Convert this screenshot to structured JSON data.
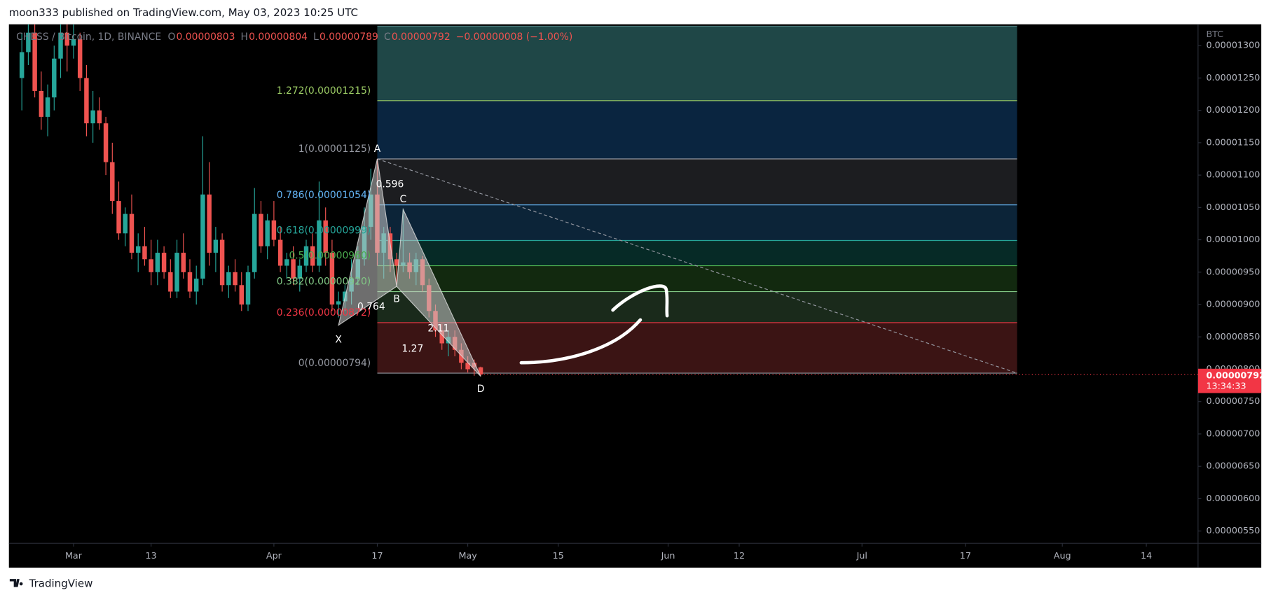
{
  "header": {
    "publisher": "moon333 published on TradingView.com, May 03, 2023 10:25 UTC"
  },
  "footer": {
    "brand": "TradingView"
  },
  "chart_data": {
    "type": "candlestick",
    "symbol": "CHESS / Bitcoin, 1D, BINANCE",
    "ohlc_legend": [
      {
        "key": "O",
        "value": "0.00000803"
      },
      {
        "key": "H",
        "value": "0.00000804"
      },
      {
        "key": "L",
        "value": "0.00000789"
      },
      {
        "key": "C",
        "value": "0.00000792"
      }
    ],
    "change": "−0.00000008 (−1.00%)",
    "currency": "BTC",
    "last_price": {
      "value": 7.92e-06,
      "label": "0.00000792",
      "countdown": "13:34:33",
      "color": "#f23645"
    },
    "up_color": "#26a69a",
    "down_color": "#ef5350",
    "x": [
      "2023-02-21",
      "2023-02-22",
      "2023-02-23",
      "2023-02-24",
      "2023-02-25",
      "2023-02-26",
      "2023-02-27",
      "2023-02-28",
      "2023-03-01",
      "2023-03-02",
      "2023-03-03",
      "2023-03-04",
      "2023-03-05",
      "2023-03-06",
      "2023-03-07",
      "2023-03-08",
      "2023-03-09",
      "2023-03-10",
      "2023-03-11",
      "2023-03-12",
      "2023-03-13",
      "2023-03-14",
      "2023-03-15",
      "2023-03-16",
      "2023-03-17",
      "2023-03-18",
      "2023-03-19",
      "2023-03-20",
      "2023-03-21",
      "2023-03-22",
      "2023-03-23",
      "2023-03-24",
      "2023-03-25",
      "2023-03-26",
      "2023-03-27",
      "2023-03-28",
      "2023-03-29",
      "2023-03-30",
      "2023-03-31",
      "2023-04-01",
      "2023-04-02",
      "2023-04-03",
      "2023-04-04",
      "2023-04-05",
      "2023-04-06",
      "2023-04-07",
      "2023-04-08",
      "2023-04-09",
      "2023-04-10",
      "2023-04-11",
      "2023-04-12",
      "2023-04-13",
      "2023-04-14",
      "2023-04-15",
      "2023-04-16",
      "2023-04-17",
      "2023-04-18",
      "2023-04-19",
      "2023-04-20",
      "2023-04-21",
      "2023-04-22",
      "2023-04-23",
      "2023-04-24",
      "2023-04-25",
      "2023-04-26",
      "2023-04-27",
      "2023-04-28",
      "2023-04-29",
      "2023-04-30",
      "2023-05-01",
      "2023-05-02",
      "2023-05-03"
    ],
    "open": [
      1.25e-05,
      1.29e-05,
      1.32e-05,
      1.23e-05,
      1.19e-05,
      1.22e-05,
      1.28e-05,
      1.32e-05,
      1.3e-05,
      1.31e-05,
      1.25e-05,
      1.18e-05,
      1.2e-05,
      1.18e-05,
      1.12e-05,
      1.06e-05,
      1.01e-05,
      1.04e-05,
      9.8e-06,
      9.9e-06,
      9.7e-06,
      9.5e-06,
      9.8e-06,
      9.5e-06,
      9.2e-06,
      9.8e-06,
      9.5e-06,
      9.2e-06,
      9.4e-06,
      1.07e-05,
      9.8e-06,
      1e-05,
      9.3e-06,
      9.5e-06,
      9.3e-06,
      9e-06,
      9.5e-06,
      1.04e-05,
      9.9e-06,
      1.03e-05,
      1e-05,
      9.6e-06,
      9.7e-06,
      9.4e-06,
      9.6e-06,
      9.9e-06,
      9.6e-06,
      1.03e-05,
      9.8e-06,
      9e-06,
      9.05e-06,
      9.2e-06,
      9.4e-06,
      9.7e-06,
      1.02e-05,
      1.07e-05,
      9.8e-06,
      1.01e-05,
      9.7e-06,
      9.6e-06,
      9.65e-06,
      9.5e-06,
      9.7e-06,
      9.3e-06,
      8.9e-06,
      8.6e-06,
      8.4e-06,
      8.5e-06,
      8.3e-06,
      8.1e-06,
      8.1e-06,
      8.03e-06
    ],
    "high": [
      1.32e-05,
      1.333e-05,
      1.333e-05,
      1.26e-05,
      1.24e-05,
      1.3e-05,
      1.333e-05,
      1.333e-05,
      1.333e-05,
      1.32e-05,
      1.27e-05,
      1.23e-05,
      1.22e-05,
      1.19e-05,
      1.15e-05,
      1.09e-05,
      1.05e-05,
      1.07e-05,
      1.01e-05,
      1.02e-05,
      1e-05,
      1e-05,
      9.9e-06,
      9.7e-06,
      1e-05,
      1.01e-05,
      9.7e-06,
      9.6e-06,
      1.16e-05,
      1.12e-05,
      1.02e-05,
      1.01e-05,
      9.6e-06,
      9.7e-06,
      9.5e-06,
      9.6e-06,
      1.08e-05,
      1.06e-05,
      1.04e-05,
      1.06e-05,
      1.02e-05,
      9.8e-06,
      9.9e-06,
      9.7e-06,
      1e-05,
      1.01e-05,
      1.09e-05,
      1.05e-05,
      1e-05,
      9.2e-06,
      9.3e-06,
      9.7e-06,
      9.9e-06,
      1.05e-05,
      1.11e-05,
      1.125e-05,
      1.02e-05,
      1.02e-05,
      9.8e-06,
      1.047e-05,
      9.8e-06,
      9.8e-06,
      9.75e-06,
      9.4e-06,
      9e-06,
      8.7e-06,
      8.6e-06,
      8.6e-06,
      8.4e-06,
      8.2e-06,
      8.15e-06,
      8.04e-06
    ],
    "low": [
      1.2e-05,
      1.27e-05,
      1.22e-05,
      1.17e-05,
      1.16e-05,
      1.2e-05,
      1.25e-05,
      1.26e-05,
      1.28e-05,
      1.23e-05,
      1.16e-05,
      1.15e-05,
      1.17e-05,
      1.1e-05,
      1.04e-05,
      1e-05,
      9.9e-06,
      9.7e-06,
      9.5e-06,
      9.6e-06,
      9.3e-06,
      9.3e-06,
      9.4e-06,
      9.1e-06,
      9.1e-06,
      9.4e-06,
      9.1e-06,
      9e-06,
      9.3e-06,
      9.6e-06,
      9.5e-06,
      9.2e-06,
      9.1e-06,
      9.2e-06,
      8.9e-06,
      8.9e-06,
      9.4e-06,
      9.8e-06,
      9.7e-06,
      9.9e-06,
      9.5e-06,
      9.4e-06,
      9.3e-06,
      9.2e-06,
      9.5e-06,
      9.5e-06,
      9.5e-06,
      9.6e-06,
      8.9e-06,
      8.8e-06,
      8.9e-06,
      9e-06,
      9.3e-06,
      9.6e-06,
      1e-05,
      9.6e-06,
      9.4e-06,
      9.5e-06,
      9.3e-06,
      9.5e-06,
      9.4e-06,
      9.3e-06,
      9.2e-06,
      8.8e-06,
      8.5e-06,
      8.3e-06,
      8.2e-06,
      8.2e-06,
      8e-06,
      7.95e-06,
      7.9e-06,
      7.89e-06
    ],
    "close": [
      1.29e-05,
      1.32e-05,
      1.23e-05,
      1.19e-05,
      1.22e-05,
      1.28e-05,
      1.32e-05,
      1.3e-05,
      1.31e-05,
      1.25e-05,
      1.18e-05,
      1.2e-05,
      1.18e-05,
      1.12e-05,
      1.06e-05,
      1.01e-05,
      1.04e-05,
      9.8e-06,
      9.9e-06,
      9.7e-06,
      9.5e-06,
      9.8e-06,
      9.5e-06,
      9.2e-06,
      9.8e-06,
      9.5e-06,
      9.2e-06,
      9.4e-06,
      1.07e-05,
      9.8e-06,
      1e-05,
      9.3e-06,
      9.5e-06,
      9.3e-06,
      9e-06,
      9.5e-06,
      1.04e-05,
      9.9e-06,
      1.03e-05,
      1e-05,
      9.6e-06,
      9.7e-06,
      9.4e-06,
      9.6e-06,
      9.9e-06,
      9.6e-06,
      1.03e-05,
      9.8e-06,
      9e-06,
      9.05e-06,
      9.2e-06,
      9.4e-06,
      9.7e-06,
      1.02e-05,
      1.07e-05,
      9.8e-06,
      1.01e-05,
      9.7e-06,
      9.6e-06,
      9.65e-06,
      9.5e-06,
      9.7e-06,
      9.3e-06,
      8.9e-06,
      8.6e-06,
      8.4e-06,
      8.5e-06,
      8.3e-06,
      8.1e-06,
      8e-06,
      8.03e-06,
      7.92e-06
    ],
    "xlim": [
      "2023-02-19",
      "2023-08-22"
    ],
    "xticks": [
      {
        "value": "2023-03-01",
        "label": "Mar"
      },
      {
        "value": "2023-03-13",
        "label": "13"
      },
      {
        "value": "2023-04-01",
        "label": "Apr"
      },
      {
        "value": "2023-04-17",
        "label": "17"
      },
      {
        "value": "2023-05-01",
        "label": "May"
      },
      {
        "value": "2023-05-15",
        "label": "15"
      },
      {
        "value": "2023-06-01",
        "label": "Jun"
      },
      {
        "value": "2023-06-12",
        "label": "12"
      },
      {
        "value": "2023-07-01",
        "label": "Jul"
      },
      {
        "value": "2023-07-17",
        "label": "17"
      },
      {
        "value": "2023-08-01",
        "label": "Aug"
      },
      {
        "value": "2023-08-14",
        "label": "14"
      }
    ],
    "ylim": [
      5.31e-06,
      1.333e-05
    ],
    "yticks": [
      {
        "value": 5.5e-06,
        "label": "0.00000550"
      },
      {
        "value": 6e-06,
        "label": "0.00000600"
      },
      {
        "value": 6.5e-06,
        "label": "0.00000650"
      },
      {
        "value": 7e-06,
        "label": "0.00000700"
      },
      {
        "value": 7.5e-06,
        "label": "0.00000750"
      },
      {
        "value": 8e-06,
        "label": "0.00000800"
      },
      {
        "value": 8.5e-06,
        "label": "0.00000850"
      },
      {
        "value": 9e-06,
        "label": "0.00000900"
      },
      {
        "value": 9.5e-06,
        "label": "0.00000950"
      },
      {
        "value": 1e-05,
        "label": "0.00001000"
      },
      {
        "value": 1.05e-05,
        "label": "0.00001050"
      },
      {
        "value": 1.1e-05,
        "label": "0.00001100"
      },
      {
        "value": 1.15e-05,
        "label": "0.00001150"
      },
      {
        "value": 1.2e-05,
        "label": "0.00001200"
      },
      {
        "value": 1.25e-05,
        "label": "0.00001250"
      },
      {
        "value": 1.3e-05,
        "label": "0.00001300"
      }
    ],
    "fib_x": [
      "2023-04-17",
      "2023-07-25"
    ],
    "fib_levels": [
      {
        "value": 1.33e-05,
        "color": "#4f7f7f",
        "fill": "#1f4747"
      },
      {
        "value": 1.215e-05,
        "label": "1.272(0.00001215)",
        "color": "#9ccc65",
        "fill": "#0a2540"
      },
      {
        "value": 1.125e-05,
        "label": "1(0.00001125)",
        "color": "#9598a1",
        "fill": "#1c1d20"
      },
      {
        "value": 1.054e-05,
        "label": "0.786(0.00001054)",
        "color": "#64b5f6",
        "fill": "#0c2438"
      },
      {
        "value": 9.99e-06,
        "label": "0.618(0.00000999)",
        "color": "#26a69a",
        "fill": "#062a26"
      },
      {
        "value": 9.6e-06,
        "label": "0.5(0.00000960)",
        "color": "#4caf50",
        "fill": "#12290f"
      },
      {
        "value": 9.2e-06,
        "label": "0.382(0.00000920)",
        "color": "#81c784",
        "fill": "#1a2a1b"
      },
      {
        "value": 8.72e-06,
        "label": "0.236(0.00000872)",
        "color": "#f23645",
        "fill": "#3b1414"
      },
      {
        "value": 7.94e-06,
        "label": "0(0.00000794)",
        "color": "#9598a1"
      }
    ],
    "trend_line": {
      "x": [
        "2023-04-17",
        "2023-07-25"
      ],
      "y": [
        1.125e-05,
        7.94e-06
      ]
    },
    "pattern": {
      "points": [
        {
          "label": "X",
          "x": "2023-04-11",
          "y": 8.68e-06
        },
        {
          "label": "A",
          "x": "2023-04-17",
          "y": 1.125e-05
        },
        {
          "label": "B",
          "x": "2023-04-20",
          "y": 9.28e-06
        },
        {
          "label": "C",
          "x": "2023-04-21",
          "y": 1.047e-05
        },
        {
          "label": "D",
          "x": "2023-05-03",
          "y": 7.89e-06
        }
      ],
      "ratios": [
        "0.596",
        "0.764",
        "2.11",
        "1.27"
      ]
    }
  }
}
